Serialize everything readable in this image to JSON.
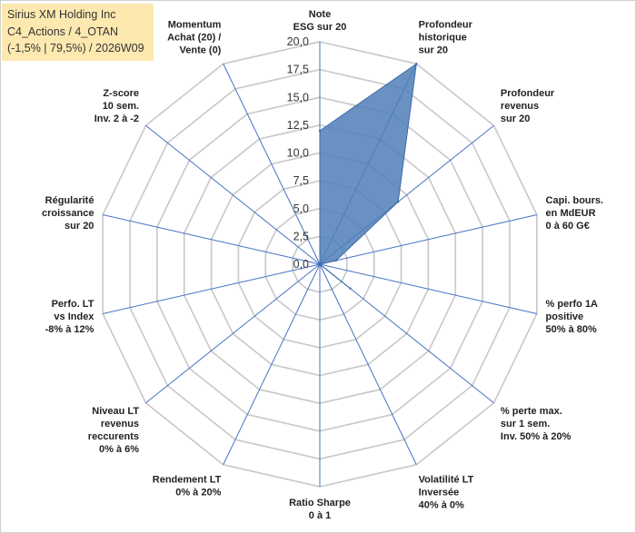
{
  "title_box": {
    "line1": "Sirius XM Holding Inc",
    "line2": "C4_Actions / 4_OTAN",
    "line3": "(-1,5% | 79,5%) / 2026W09"
  },
  "chart_data": {
    "type": "radar",
    "title": "Sirius XM Holding Inc",
    "r_range": [
      0,
      20
    ],
    "r_ticks": [
      "0,0",
      "2,5",
      "5,0",
      "7,5",
      "10,0",
      "12,5",
      "15,0",
      "17,5",
      "20,0"
    ],
    "grid": true,
    "fill_color": "#4f7fb8",
    "line_color": "#3d6aa8",
    "axis_color": "#4472c4",
    "grid_color": "#c8c8c8",
    "axes": [
      {
        "label": [
          "Note",
          "ESG sur 20"
        ],
        "value": 12
      },
      {
        "label": [
          "Profondeur",
          "historique",
          "sur 20"
        ],
        "value": 20
      },
      {
        "label": [
          "Profondeur",
          "revenus",
          "sur 20"
        ],
        "value": 9
      },
      {
        "label": [
          "Capi. bours.",
          "en MdEUR",
          "0 à 60 G€"
        ],
        "value": 1.5
      },
      {
        "label": [
          "% perfo 1A",
          "positive",
          "50% à 80%"
        ],
        "value": 0
      },
      {
        "label": [
          "% perte max.",
          "sur 1 sem.",
          "Inv. 50% à 20%"
        ],
        "value": 3.5
      },
      {
        "label": [
          "Volatilité LT",
          "Inversée",
          "40% à 0%"
        ],
        "value": 0
      },
      {
        "label": [
          "Ratio Sharpe",
          "0 à 1"
        ],
        "value": 0
      },
      {
        "label": [
          "Rendement LT",
          "0% à 20%"
        ],
        "value": 0
      },
      {
        "label": [
          "Niveau LT",
          "revenus",
          "reccurents",
          "0% à 6%"
        ],
        "value": 0
      },
      {
        "label": [
          "Perfo. LT",
          "vs Index",
          "-8% à 12%"
        ],
        "value": 0
      },
      {
        "label": [
          "Régularité",
          "croissance",
          "sur 20"
        ],
        "value": 0
      },
      {
        "label": [
          "Z-score",
          "10 sem.",
          "Inv. 2 à -2"
        ],
        "value": 0
      },
      {
        "label": [
          "Momentum",
          "Achat (20) /",
          "Vente (0)"
        ],
        "value": 0
      }
    ]
  }
}
